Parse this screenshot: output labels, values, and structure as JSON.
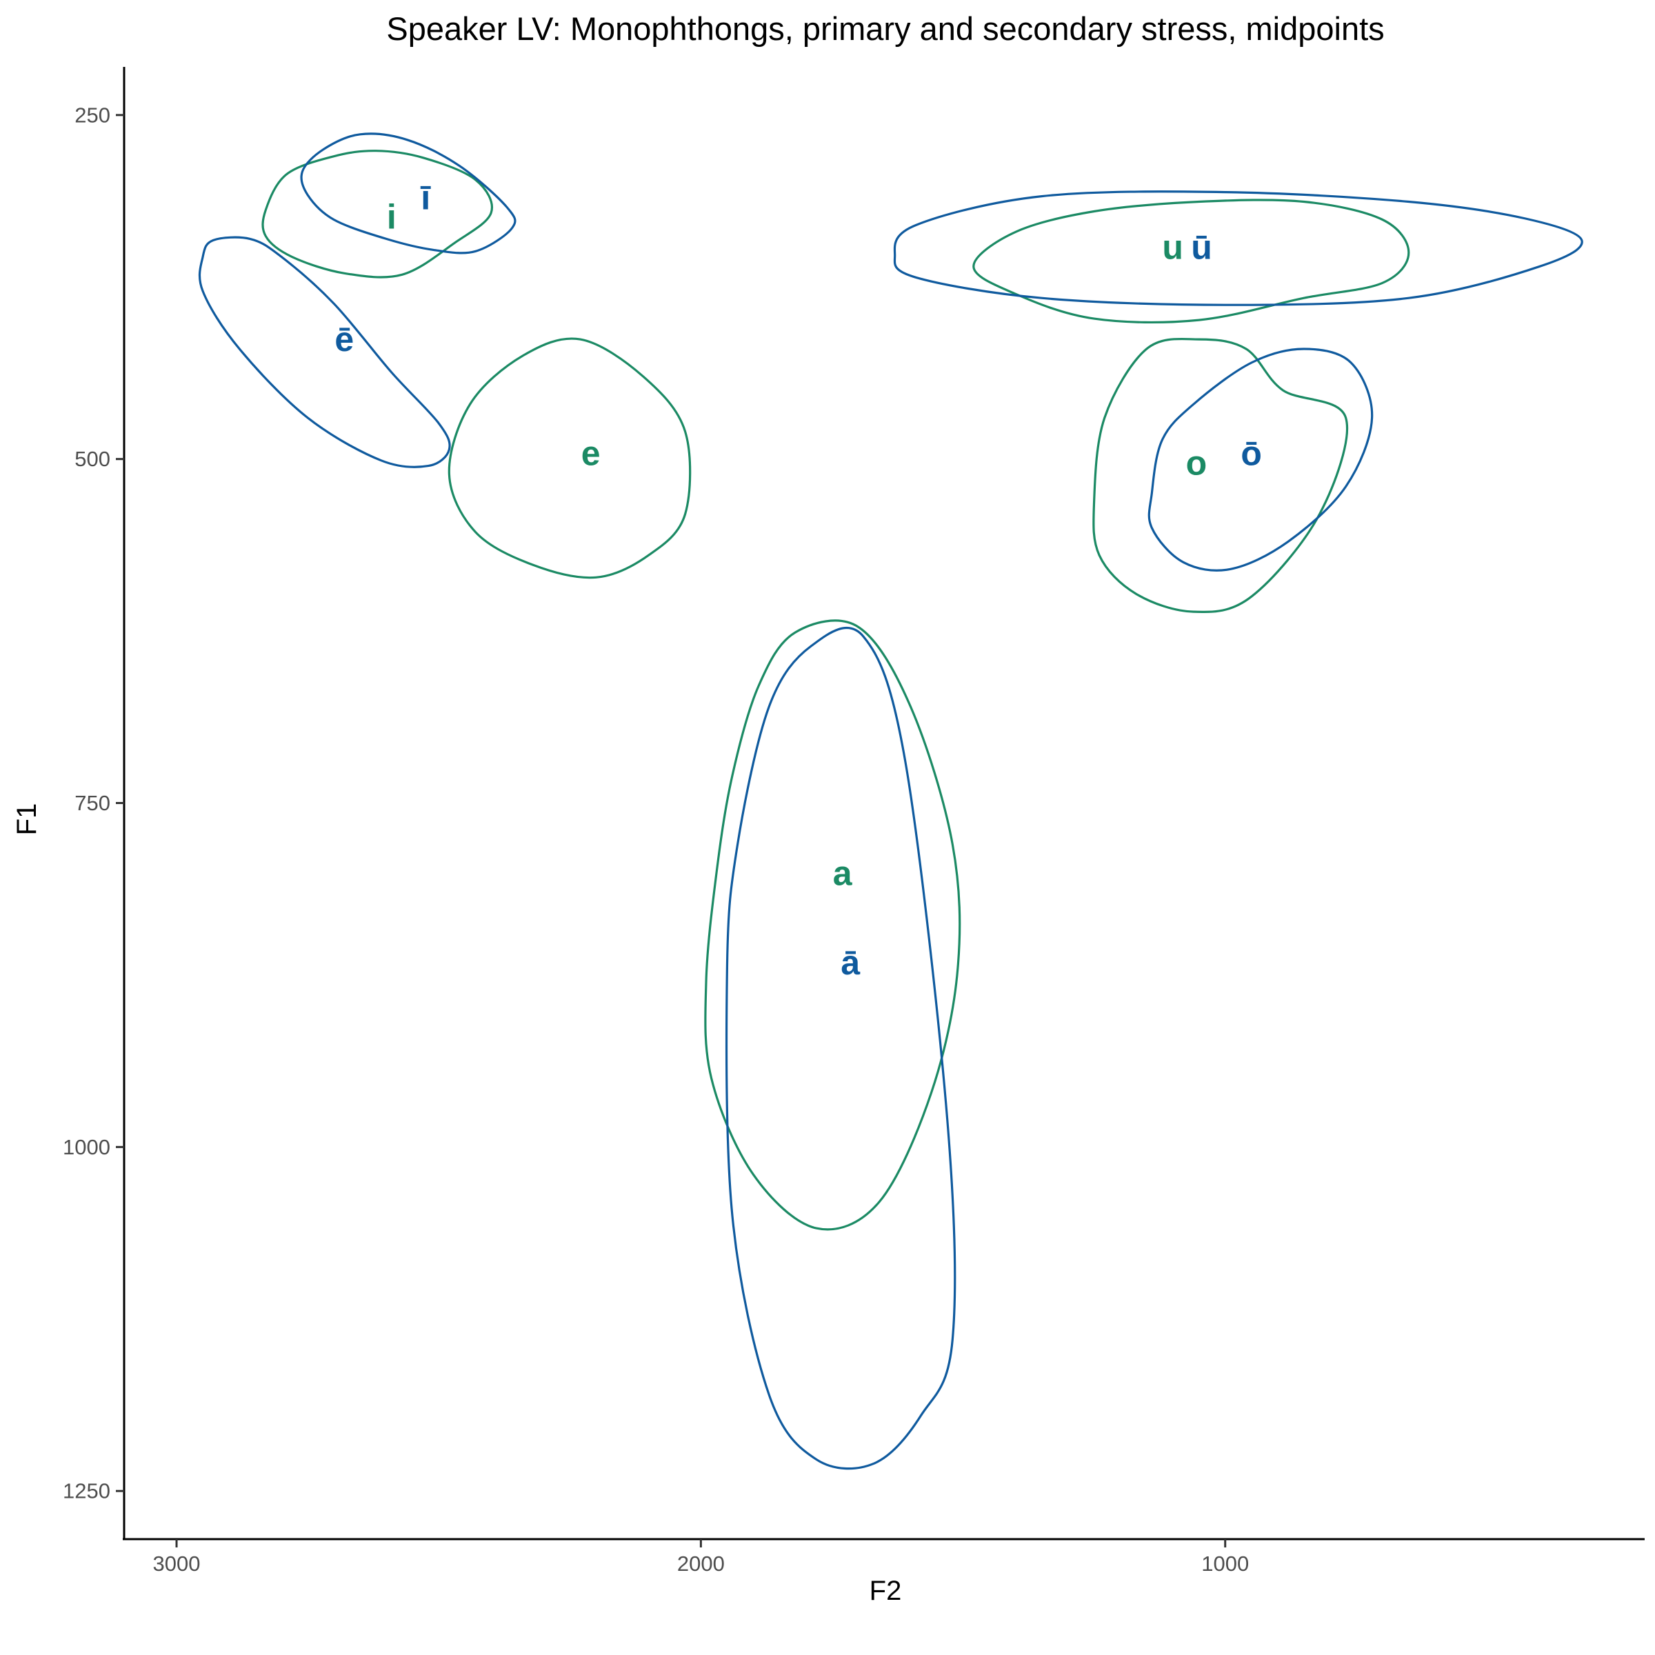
{
  "chart_data": {
    "type": "scatter",
    "title": "Speaker LV: Monophthongs, primary and secondary stress, midpoints",
    "xlabel": "F2",
    "ylabel": "F1",
    "x_reversed": true,
    "y_reversed": true,
    "xlim": [
      3100,
      200
    ],
    "ylim": [
      215,
      1285
    ],
    "x_ticks": [
      {
        "value": 3000,
        "label": "3000"
      },
      {
        "value": 2000,
        "label": "2000"
      },
      {
        "value": 1000,
        "label": "1000"
      }
    ],
    "y_ticks": [
      {
        "value": 250,
        "label": "250"
      },
      {
        "value": 500,
        "label": "500"
      },
      {
        "value": 750,
        "label": "750"
      },
      {
        "value": 1000,
        "label": "1000"
      },
      {
        "value": 1250,
        "label": "1250"
      }
    ],
    "grid": false,
    "legend": "none",
    "colors": {
      "short": "#1b8a64",
      "long": "#0f5a9e"
    },
    "series": [
      {
        "vowel": "i",
        "group": "short",
        "color": "#1b8a64",
        "f2": 2590,
        "f1": 324,
        "ellipse_points": [
          [
            2830,
            319
          ],
          [
            2790,
            293
          ],
          [
            2700,
            280
          ],
          [
            2620,
            276
          ],
          [
            2530,
            281
          ],
          [
            2430,
            297
          ],
          [
            2400,
            321
          ],
          [
            2470,
            343
          ],
          [
            2570,
            366
          ],
          [
            2680,
            365
          ],
          [
            2780,
            353
          ],
          [
            2830,
            338
          ],
          [
            2830,
            319
          ]
        ]
      },
      {
        "vowel": "ī",
        "group": "long",
        "color": "#0f5a9e",
        "f2": 2525,
        "f1": 310,
        "ellipse_points": [
          [
            2760,
            291
          ],
          [
            2720,
            275
          ],
          [
            2650,
            264
          ],
          [
            2560,
            268
          ],
          [
            2460,
            287
          ],
          [
            2370,
            317
          ],
          [
            2360,
            332
          ],
          [
            2430,
            349
          ],
          [
            2510,
            348
          ],
          [
            2600,
            340
          ],
          [
            2700,
            326
          ],
          [
            2750,
            308
          ],
          [
            2760,
            291
          ]
        ]
      },
      {
        "vowel": "ē",
        "group": "long",
        "color": "#0f5a9e",
        "f2": 2680,
        "f1": 413,
        "ellipse_points": [
          [
            2950,
            353
          ],
          [
            2930,
            341
          ],
          [
            2860,
            340
          ],
          [
            2800,
            353
          ],
          [
            2700,
            387
          ],
          [
            2590,
            437
          ],
          [
            2500,
            474
          ],
          [
            2480,
            493
          ],
          [
            2520,
            505
          ],
          [
            2610,
            501
          ],
          [
            2750,
            470
          ],
          [
            2880,
            420
          ],
          [
            2950,
            378
          ],
          [
            2950,
            353
          ]
        ]
      },
      {
        "vowel": "e",
        "group": "short",
        "color": "#1b8a64",
        "f2": 2210,
        "f1": 496,
        "ellipse_points": [
          [
            2480,
            511
          ],
          [
            2440,
            460
          ],
          [
            2340,
            425
          ],
          [
            2230,
            413
          ],
          [
            2110,
            440
          ],
          [
            2030,
            480
          ],
          [
            2030,
            540
          ],
          [
            2100,
            570
          ],
          [
            2200,
            586
          ],
          [
            2320,
            577
          ],
          [
            2430,
            553
          ],
          [
            2480,
            511
          ]
        ]
      },
      {
        "vowel": "a",
        "group": "short",
        "color": "#1b8a64",
        "f2": 1730,
        "f1": 801,
        "ellipse_points": [
          [
            1990,
            880
          ],
          [
            1970,
            800
          ],
          [
            1940,
            730
          ],
          [
            1890,
            665
          ],
          [
            1820,
            626
          ],
          [
            1700,
            622
          ],
          [
            1600,
            680
          ],
          [
            1520,
            780
          ],
          [
            1510,
            870
          ],
          [
            1560,
            960
          ],
          [
            1660,
            1040
          ],
          [
            1780,
            1059
          ],
          [
            1900,
            1020
          ],
          [
            1980,
            950
          ],
          [
            1990,
            880
          ]
        ]
      },
      {
        "vowel": "ā",
        "group": "long",
        "color": "#0f5a9e",
        "f2": 1715,
        "f1": 866,
        "ellipse_points": [
          [
            1950,
            870
          ],
          [
            1930,
            780
          ],
          [
            1870,
            680
          ],
          [
            1790,
            636
          ],
          [
            1690,
            629
          ],
          [
            1610,
            720
          ],
          [
            1530,
            980
          ],
          [
            1520,
            1140
          ],
          [
            1580,
            1195
          ],
          [
            1670,
            1230
          ],
          [
            1780,
            1227
          ],
          [
            1870,
            1180
          ],
          [
            1940,
            1050
          ],
          [
            1950,
            870
          ]
        ]
      },
      {
        "vowel": "u",
        "group": "short",
        "color": "#1b8a64",
        "f2": 1100,
        "f1": 346,
        "ellipse_points": [
          [
            1480,
            360
          ],
          [
            1400,
            335
          ],
          [
            1250,
            320
          ],
          [
            1050,
            313
          ],
          [
            850,
            313
          ],
          [
            700,
            326
          ],
          [
            650,
            350
          ],
          [
            700,
            372
          ],
          [
            850,
            383
          ],
          [
            1050,
            399
          ],
          [
            1250,
            398
          ],
          [
            1400,
            380
          ],
          [
            1480,
            360
          ]
        ]
      },
      {
        "vowel": "ū",
        "group": "long",
        "color": "#0f5a9e",
        "f2": 1045,
        "f1": 346,
        "ellipse_points": [
          [
            1630,
            352
          ],
          [
            1590,
            330
          ],
          [
            1350,
            309
          ],
          [
            1000,
            306
          ],
          [
            650,
            313
          ],
          [
            430,
            325
          ],
          [
            320,
            341
          ],
          [
            400,
            360
          ],
          [
            650,
            383
          ],
          [
            1000,
            388
          ],
          [
            1350,
            383
          ],
          [
            1590,
            368
          ],
          [
            1630,
            352
          ]
        ]
      },
      {
        "vowel": "o",
        "group": "short",
        "color": "#1b8a64",
        "f2": 1055,
        "f1": 503,
        "ellipse_points": [
          [
            1250,
            531
          ],
          [
            1230,
            470
          ],
          [
            1150,
            420
          ],
          [
            1050,
            413
          ],
          [
            960,
            420
          ],
          [
            890,
            450
          ],
          [
            770,
            470
          ],
          [
            820,
            540
          ],
          [
            950,
            600
          ],
          [
            1060,
            611
          ],
          [
            1170,
            598
          ],
          [
            1240,
            570
          ],
          [
            1250,
            531
          ]
        ]
      },
      {
        "vowel": "ō",
        "group": "long",
        "color": "#0f5a9e",
        "f2": 950,
        "f1": 496,
        "ellipse_points": [
          [
            1140,
            525
          ],
          [
            1120,
            486
          ],
          [
            1060,
            460
          ],
          [
            950,
            430
          ],
          [
            850,
            420
          ],
          [
            760,
            430
          ],
          [
            720,
            470
          ],
          [
            770,
            520
          ],
          [
            880,
            560
          ],
          [
            990,
            580
          ],
          [
            1080,
            575
          ],
          [
            1140,
            550
          ],
          [
            1140,
            525
          ]
        ]
      }
    ]
  }
}
